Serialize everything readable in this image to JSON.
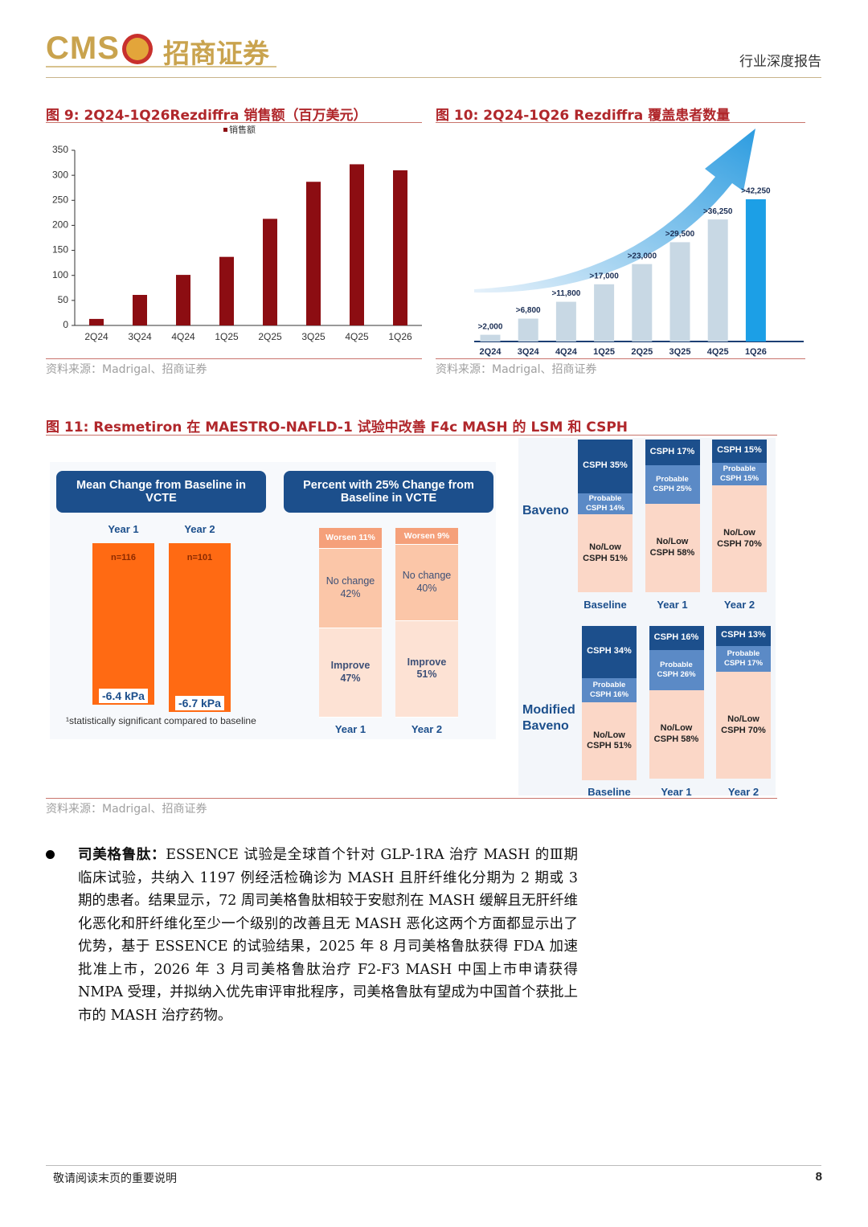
{
  "header": {
    "logo": "CMS",
    "brand": "招商证券",
    "report_type": "行业深度报告"
  },
  "figure9": {
    "title": "图 9:  2Q24-1Q26Rezdiffra 销售额（百万美元）",
    "source": "资料来源：Madrigal、招商证券",
    "chart_data": {
      "type": "bar",
      "categories": [
        "2Q24",
        "3Q24",
        "4Q24",
        "1Q25",
        "2Q25",
        "3Q25",
        "4Q25",
        "1Q26"
      ],
      "series": [
        {
          "name": "销售额",
          "color": "#8c0d12",
          "values": [
            13,
            61,
            101,
            137,
            213,
            287,
            322,
            310
          ]
        }
      ],
      "ylim": [
        0,
        350
      ],
      "yticks": [
        0,
        50,
        100,
        150,
        200,
        250,
        300,
        350
      ]
    }
  },
  "figure10": {
    "title": "图 10:  2Q24-1Q26 Rezdiffra 覆盖患者数量",
    "source": "资料来源：Madrigal、招商证券",
    "chart_data": {
      "type": "bar",
      "categories": [
        "2Q24",
        "3Q24",
        "4Q24",
        "1Q25",
        "2Q25",
        "3Q25",
        "4Q25",
        "1Q26"
      ],
      "values": [
        2000,
        6800,
        11800,
        17000,
        23000,
        29500,
        36250,
        42250
      ],
      "value_labels": [
        ">2,000",
        ">6,800",
        ">11,800",
        ">17,000",
        ">23,000",
        ">29,500",
        ">36,250",
        ">42,250"
      ],
      "colors": [
        "#c8d8e4",
        "#c8d8e4",
        "#c8d8e4",
        "#c8d8e4",
        "#c8d8e4",
        "#c8d8e4",
        "#c8d8e4",
        "#1c9fe6"
      ]
    }
  },
  "figure11": {
    "title": "图 11:  Resmetiron 在 MAESTRO-NAFLD-1 试验中改善 F4c MASH 的 LSM 和 CSPH",
    "source": "资料来源：Madrigal、招商证券",
    "lsm": {
      "heading": "Mean Change from Baseline in VCTE",
      "categories": [
        "Year 1",
        "Year 2"
      ],
      "n_labels": [
        "n=116",
        "n=101"
      ],
      "values": [
        -6.4,
        -6.7
      ],
      "value_labels": [
        "-6.4 kPa",
        "-6.7 kPa"
      ],
      "color": "#ff6a13",
      "footnote": "¹statistically significant compared to baseline"
    },
    "vcte": {
      "heading": "Percent with 25% Change from Baseline in VCTE",
      "categories": [
        "Year 1",
        "Year 2"
      ],
      "series": [
        {
          "color": "#f5a07a",
          "values": [
            11,
            9
          ],
          "value_labels": [
            "Worsen 11%",
            "Worsen 9%"
          ]
        },
        {
          "color": "#fbc6a8",
          "values": [
            42,
            40
          ],
          "value_labels": [
            "No change 42%",
            "No change 40%"
          ]
        },
        {
          "color": "#fde2d4",
          "values": [
            47,
            51
          ],
          "value_labels": [
            "Improve 47%",
            "Improve 51%"
          ]
        }
      ]
    },
    "csph": {
      "categories": [
        "Baseline",
        "Year 1",
        "Year 2"
      ],
      "groups": [
        {
          "label": "Baveno",
          "series": [
            {
              "color": "#1c4f8c",
              "values": [
                35,
                17,
                15
              ],
              "value_labels": [
                "CSPH 35%",
                "CSPH 17%",
                "CSPH 15%"
              ]
            },
            {
              "color": "#5b8ac6",
              "values": [
                14,
                25,
                15
              ],
              "value_labels": [
                "Probable CSPH 14%",
                "Probable CSPH 25%",
                "Probable CSPH 15%"
              ]
            },
            {
              "color": "#fbd7c7",
              "values": [
                51,
                58,
                70
              ],
              "value_labels": [
                "No/Low CSPH 51%",
                "No/Low CSPH 58%",
                "No/Low CSPH 70%"
              ]
            }
          ]
        },
        {
          "label": "Modified Baveno",
          "series": [
            {
              "color": "#1c4f8c",
              "values": [
                34,
                16,
                13
              ],
              "value_labels": [
                "CSPH 34%",
                "CSPH 16%",
                "CSPH 13%"
              ]
            },
            {
              "color": "#5b8ac6",
              "values": [
                16,
                26,
                17
              ],
              "value_labels": [
                "Probable CSPH 16%",
                "Probable CSPH 26%",
                "Probable CSPH 17%"
              ]
            },
            {
              "color": "#fbd7c7",
              "values": [
                51,
                58,
                70
              ],
              "value_labels": [
                "No/Low CSPH 51%",
                "No/Low CSPH 58%",
                "No/Low CSPH 70%"
              ]
            }
          ]
        }
      ]
    }
  },
  "paragraph": {
    "lead": "司美格鲁肽：",
    "body": "ESSENCE 试验是全球首个针对 GLP-1RA 治疗 MASH 的Ⅲ期临床试验，共纳入 1197 例经活检确诊为 MASH 且肝纤维化分期为 2 期或 3 期的患者。结果显示，72 周司美格鲁肽相较于安慰剂在 MASH 缓解且无肝纤维化恶化和肝纤维化至少一个级别的改善且无 MASH 恶化这两个方面都显示出了优势，基于 ESSENCE 的试验结果，2025 年 8 月司美格鲁肽获得 FDA 加速批准上市，2026 年 3 月司美格鲁肽治疗 F2-F3 MASH 中国上市申请获得 NMPA 受理，并拟纳入优先审评审批程序，司美格鲁肽有望成为中国首个获批上市的 MASH 治疗药物。"
  },
  "footer": {
    "disclaimer": "敬请阅读末页的重要说明",
    "page_number": 8
  }
}
